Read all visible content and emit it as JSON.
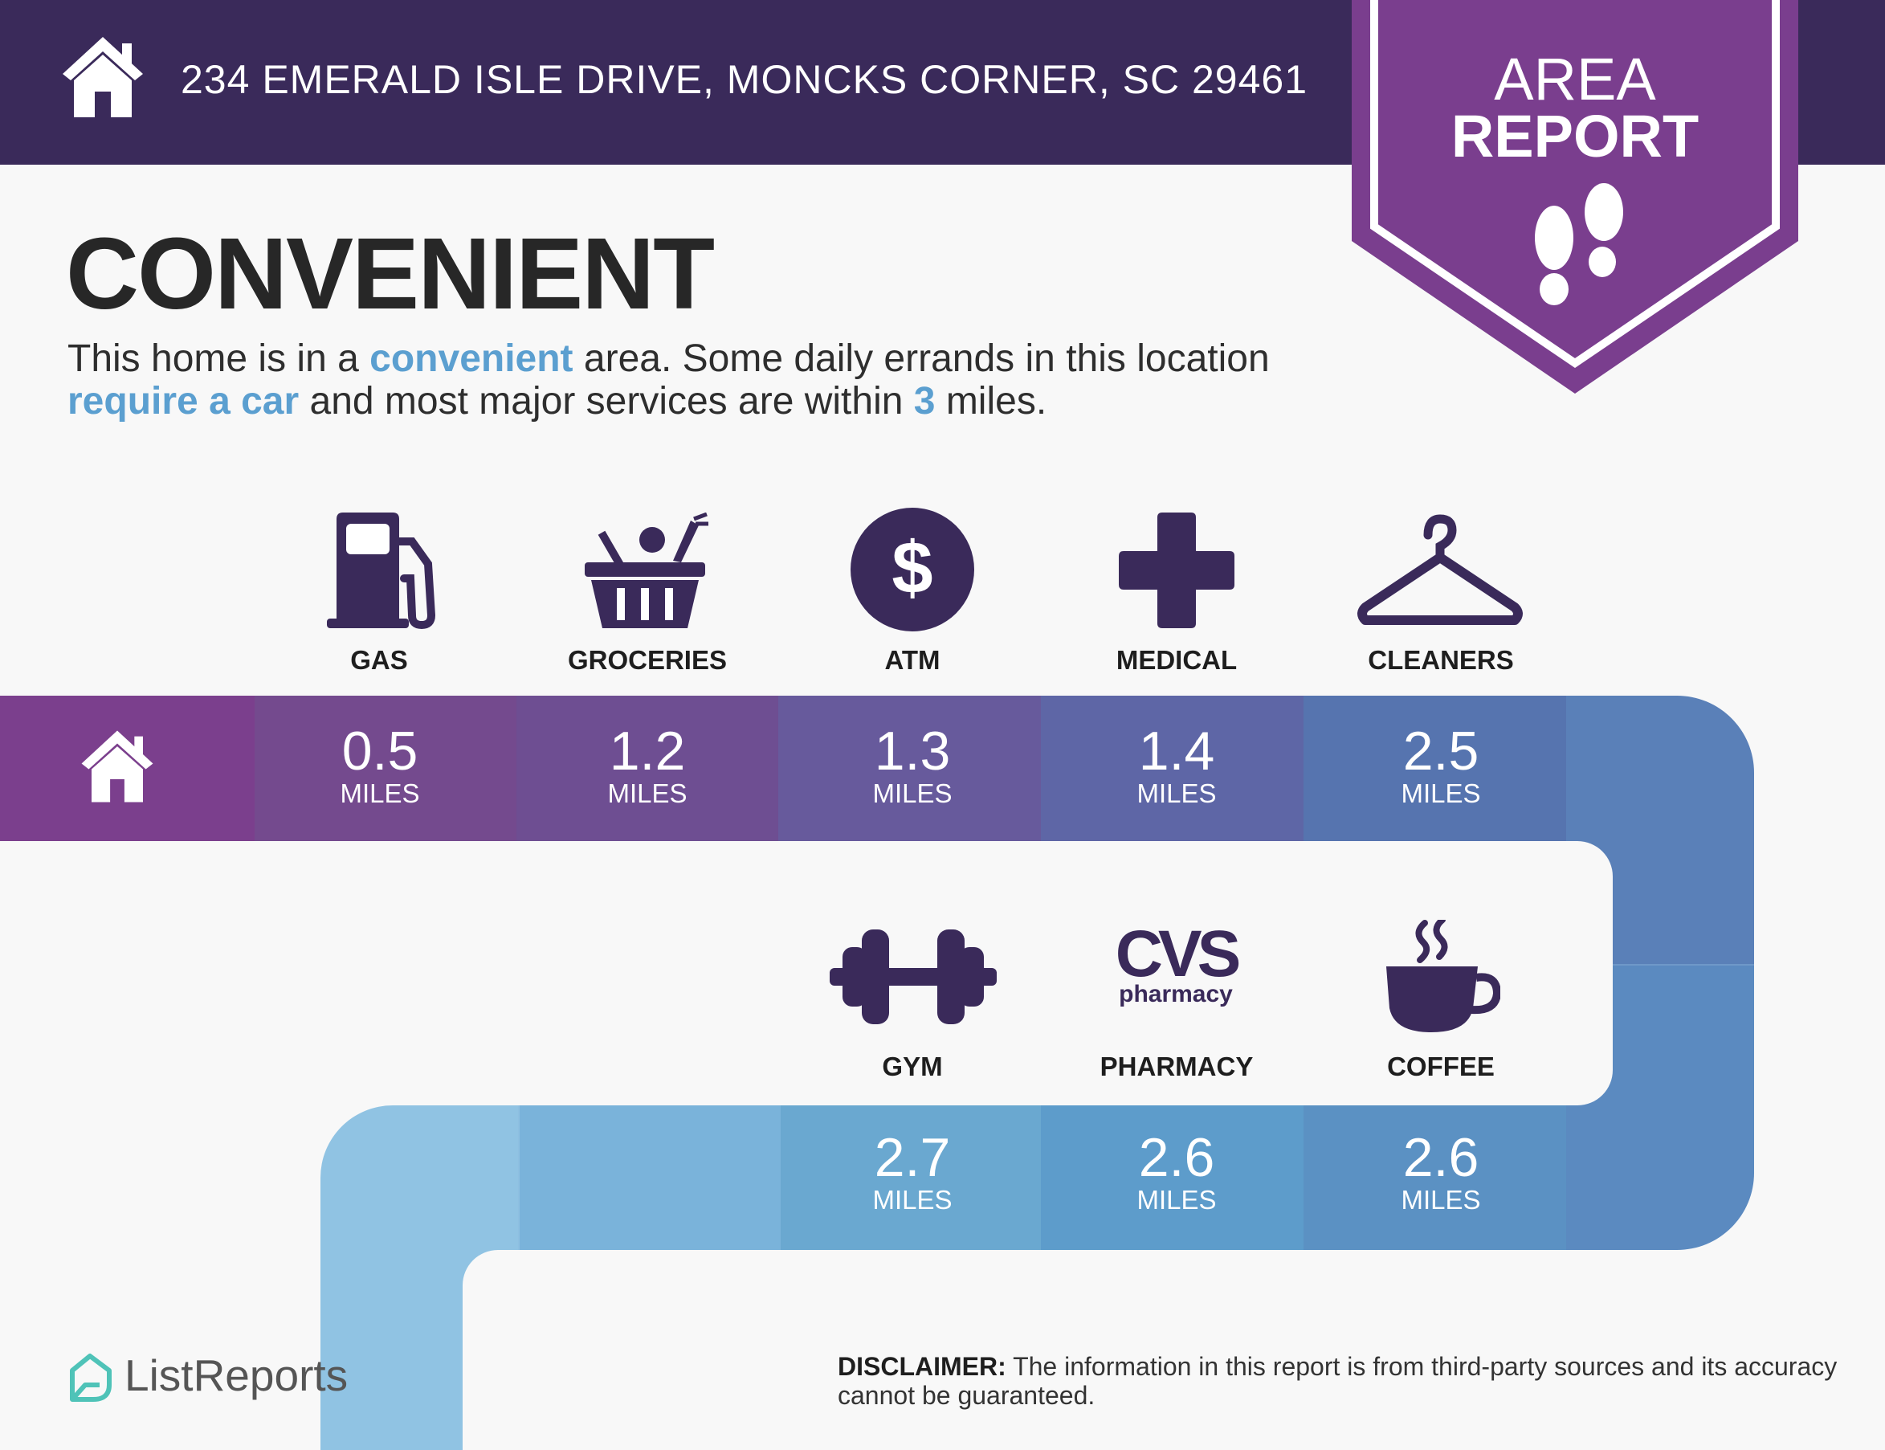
{
  "header": {
    "address": "234 EMERALD ISLE DRIVE, MONCKS CORNER, SC 29461",
    "icon": "home-icon"
  },
  "badge": {
    "line1": "AREA",
    "line2": "REPORT",
    "icon": "footprints-icon",
    "color": "#7a3e8e"
  },
  "title": "CONVENIENT",
  "description": {
    "p1": "This home is in a ",
    "h1": "convenient",
    "p2": " area. Some daily errands in this location ",
    "h2": "require a car",
    "p3": " and most major services are within ",
    "h3": "3",
    "p4": " miles."
  },
  "amenities_row1": [
    {
      "label": "GAS",
      "distance": "0.5",
      "unit": "MILES",
      "icon": "gas-pump-icon",
      "color": "#744a8e"
    },
    {
      "label": "GROCERIES",
      "distance": "1.2",
      "unit": "MILES",
      "icon": "grocery-basket-icon",
      "color": "#6e4e92"
    },
    {
      "label": "ATM",
      "distance": "1.3",
      "unit": "MILES",
      "icon": "dollar-icon",
      "color": "#675a9c"
    },
    {
      "label": "MEDICAL",
      "distance": "1.4",
      "unit": "MILES",
      "icon": "medical-cross-icon",
      "color": "#5e66a6"
    },
    {
      "label": "CLEANERS",
      "distance": "2.5",
      "unit": "MILES",
      "icon": "hanger-icon",
      "color": "#5674af"
    }
  ],
  "amenities_row2": [
    {
      "label": "GYM",
      "distance": "2.7",
      "unit": "MILES",
      "icon": "dumbbell-icon",
      "color": "#6aa8d0"
    },
    {
      "label": "PHARMACY",
      "distance": "2.6",
      "unit": "MILES",
      "icon": "cvs-pharmacy-logo",
      "color": "#5d9ccb"
    },
    {
      "label": "COFFEE",
      "distance": "2.6",
      "unit": "MILES",
      "icon": "coffee-cup-icon",
      "color": "#5b91c3"
    }
  ],
  "cvs_logo": {
    "word": "CVS",
    "sub": "pharmacy"
  },
  "footer": {
    "brand": "ListReports",
    "disclaimer_label": "DISCLAIMER:",
    "disclaimer_text": " The information in this report is from third-party sources and its accuracy cannot be guaranteed."
  },
  "colors": {
    "header_bg": "#3a2a5a",
    "icon": "#3a2a5a",
    "highlight": "#5b9fd0",
    "home_segment": "#7b3f8d"
  }
}
